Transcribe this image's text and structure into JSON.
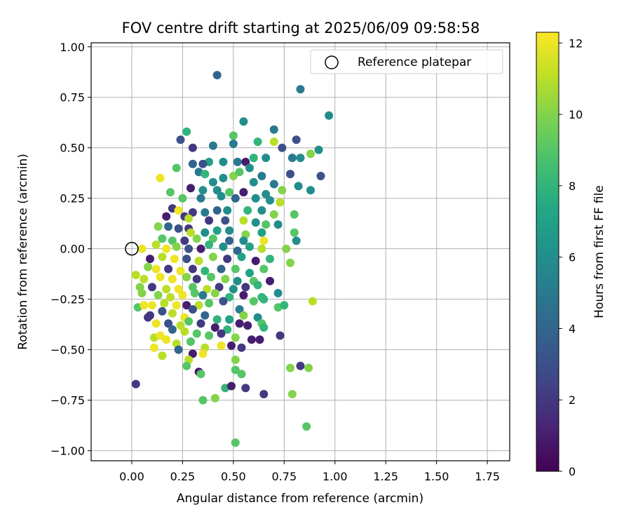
{
  "chart_data": {
    "type": "scatter",
    "title": "FOV centre drift starting at 2025/06/09 09:58:58",
    "xlabel": "Angular distance from reference (arcmin)",
    "ylabel": "Rotation from reference (arcmin)",
    "xlim": [
      -0.2,
      1.86
    ],
    "ylim": [
      -1.05,
      1.02
    ],
    "xticks": [
      "0.00",
      "0.25",
      "0.50",
      "0.75",
      "1.00",
      "1.25",
      "1.50",
      "1.75"
    ],
    "xtick_values": [
      0,
      0.25,
      0.5,
      0.75,
      1.0,
      1.25,
      1.5,
      1.75
    ],
    "yticks": [
      "1.00",
      "0.75",
      "0.50",
      "0.25",
      "0.00",
      "−0.25",
      "−0.50",
      "−0.75",
      "−1.00"
    ],
    "ytick_values": [
      1.0,
      0.75,
      0.5,
      0.25,
      0,
      -0.25,
      -0.5,
      -0.75,
      -1.0
    ],
    "grid": true,
    "legend": {
      "label": "Reference platepar",
      "position": "top-right"
    },
    "reference_point": {
      "x": 0.0,
      "y": 0.0
    },
    "colorbar": {
      "label": "Hours from first FF file",
      "colormap": "viridis",
      "range": [
        0,
        12.3
      ],
      "ticks": [
        "0",
        "2",
        "4",
        "6",
        "8",
        "10",
        "12"
      ],
      "tick_values": [
        0,
        2,
        4,
        6,
        8,
        10,
        12
      ]
    },
    "points": [
      [
        0.42,
        0.86,
        4
      ],
      [
        0.83,
        0.79,
        5
      ],
      [
        0.97,
        0.66,
        6
      ],
      [
        0.55,
        0.63,
        6
      ],
      [
        0.27,
        0.58,
        8
      ],
      [
        0.7,
        0.59,
        5
      ],
      [
        0.81,
        0.54,
        3
      ],
      [
        0.5,
        0.56,
        9
      ],
      [
        0.24,
        0.54,
        3
      ],
      [
        0.3,
        0.5,
        2
      ],
      [
        0.4,
        0.51,
        5
      ],
      [
        0.62,
        0.53,
        8
      ],
      [
        0.5,
        0.52,
        5
      ],
      [
        0.74,
        0.5,
        3
      ],
      [
        0.7,
        0.53,
        11
      ],
      [
        0.92,
        0.49,
        6
      ],
      [
        0.88,
        0.47,
        10
      ],
      [
        0.79,
        0.45,
        5
      ],
      [
        0.83,
        0.45,
        6
      ],
      [
        0.66,
        0.45,
        6
      ],
      [
        0.6,
        0.45,
        8
      ],
      [
        0.52,
        0.43,
        5
      ],
      [
        0.45,
        0.43,
        6
      ],
      [
        0.38,
        0.43,
        7
      ],
      [
        0.35,
        0.42,
        3
      ],
      [
        0.3,
        0.42,
        4
      ],
      [
        0.56,
        0.43,
        1
      ],
      [
        0.58,
        0.4,
        6
      ],
      [
        0.22,
        0.4,
        9
      ],
      [
        0.14,
        0.35,
        12
      ],
      [
        0.33,
        0.38,
        5
      ],
      [
        0.36,
        0.37,
        8
      ],
      [
        0.5,
        0.36,
        10
      ],
      [
        0.53,
        0.38,
        9
      ],
      [
        0.64,
        0.36,
        5
      ],
      [
        0.78,
        0.37,
        3
      ],
      [
        0.93,
        0.36,
        3
      ],
      [
        0.4,
        0.33,
        6
      ],
      [
        0.45,
        0.35,
        6
      ],
      [
        0.6,
        0.33,
        6
      ],
      [
        0.7,
        0.32,
        5
      ],
      [
        0.82,
        0.31,
        6
      ],
      [
        0.88,
        0.29,
        6
      ],
      [
        0.29,
        0.3,
        1
      ],
      [
        0.35,
        0.29,
        6
      ],
      [
        0.42,
        0.29,
        6
      ],
      [
        0.48,
        0.28,
        9
      ],
      [
        0.55,
        0.28,
        1
      ],
      [
        0.66,
        0.27,
        6
      ],
      [
        0.74,
        0.29,
        10
      ],
      [
        0.19,
        0.28,
        9
      ],
      [
        0.25,
        0.25,
        9
      ],
      [
        0.34,
        0.25,
        5
      ],
      [
        0.44,
        0.26,
        6
      ],
      [
        0.51,
        0.25,
        4
      ],
      [
        0.61,
        0.25,
        6
      ],
      [
        0.68,
        0.24,
        6
      ],
      [
        0.73,
        0.23,
        11
      ],
      [
        0.2,
        0.2,
        2
      ],
      [
        0.23,
        0.19,
        12
      ],
      [
        0.3,
        0.18,
        2
      ],
      [
        0.36,
        0.18,
        5
      ],
      [
        0.42,
        0.19,
        4
      ],
      [
        0.47,
        0.19,
        6
      ],
      [
        0.57,
        0.19,
        8
      ],
      [
        0.64,
        0.19,
        6
      ],
      [
        0.7,
        0.17,
        10
      ],
      [
        0.8,
        0.17,
        9
      ],
      [
        0.17,
        0.16,
        1
      ],
      [
        0.26,
        0.16,
        2
      ],
      [
        0.28,
        0.15,
        11
      ],
      [
        0.38,
        0.14,
        2
      ],
      [
        0.46,
        0.14,
        3
      ],
      [
        0.55,
        0.14,
        11
      ],
      [
        0.61,
        0.13,
        6
      ],
      [
        0.66,
        0.12,
        9
      ],
      [
        0.72,
        0.12,
        6
      ],
      [
        0.13,
        0.11,
        10
      ],
      [
        0.18,
        0.11,
        4
      ],
      [
        0.23,
        0.1,
        3
      ],
      [
        0.28,
        0.1,
        2
      ],
      [
        0.29,
        0.08,
        11
      ],
      [
        0.36,
        0.08,
        6
      ],
      [
        0.42,
        0.09,
        7
      ],
      [
        0.48,
        0.09,
        6
      ],
      [
        0.56,
        0.07,
        10
      ],
      [
        0.64,
        0.08,
        7
      ],
      [
        0.8,
        0.08,
        9
      ],
      [
        0.15,
        0.05,
        9
      ],
      [
        0.2,
        0.04,
        9
      ],
      [
        0.26,
        0.04,
        2
      ],
      [
        0.32,
        0.05,
        10
      ],
      [
        0.4,
        0.05,
        9
      ],
      [
        0.48,
        0.04,
        4
      ],
      [
        0.55,
        0.04,
        6
      ],
      [
        0.65,
        0.04,
        12
      ],
      [
        0.81,
        0.04,
        6
      ],
      [
        0.05,
        0.0,
        12
      ],
      [
        0.12,
        0.02,
        11
      ],
      [
        0.17,
        0.0,
        12
      ],
      [
        0.22,
        0.01,
        10
      ],
      [
        0.28,
        0.0,
        3
      ],
      [
        0.34,
        0.0,
        1
      ],
      [
        0.38,
        0.02,
        8
      ],
      [
        0.45,
        0.01,
        6
      ],
      [
        0.52,
        -0.01,
        4
      ],
      [
        0.58,
        0.01,
        7
      ],
      [
        0.64,
        0.0,
        11
      ],
      [
        0.76,
        0.0,
        10
      ],
      [
        0.09,
        -0.05,
        1
      ],
      [
        0.15,
        -0.04,
        11
      ],
      [
        0.21,
        -0.05,
        12
      ],
      [
        0.27,
        -0.05,
        3
      ],
      [
        0.33,
        -0.06,
        11
      ],
      [
        0.4,
        -0.04,
        10
      ],
      [
        0.47,
        -0.05,
        2
      ],
      [
        0.54,
        -0.04,
        7
      ],
      [
        0.61,
        -0.06,
        1
      ],
      [
        0.68,
        -0.05,
        8
      ],
      [
        0.78,
        -0.07,
        10
      ],
      [
        0.08,
        -0.09,
        10
      ],
      [
        0.12,
        -0.1,
        12
      ],
      [
        0.18,
        -0.1,
        2
      ],
      [
        0.24,
        -0.11,
        12
      ],
      [
        0.3,
        -0.1,
        2
      ],
      [
        0.36,
        -0.11,
        8
      ],
      [
        0.44,
        -0.1,
        4
      ],
      [
        0.51,
        -0.1,
        9
      ],
      [
        0.58,
        -0.12,
        7
      ],
      [
        0.65,
        -0.1,
        9
      ],
      [
        0.02,
        -0.13,
        11
      ],
      [
        0.06,
        -0.15,
        11
      ],
      [
        0.14,
        -0.14,
        12
      ],
      [
        0.2,
        -0.15,
        12
      ],
      [
        0.27,
        -0.14,
        10
      ],
      [
        0.32,
        -0.15,
        2
      ],
      [
        0.39,
        -0.14,
        9
      ],
      [
        0.46,
        -0.15,
        10
      ],
      [
        0.52,
        -0.16,
        6
      ],
      [
        0.6,
        -0.16,
        9
      ],
      [
        0.68,
        -0.16,
        1
      ],
      [
        0.04,
        -0.19,
        10
      ],
      [
        0.1,
        -0.19,
        2
      ],
      [
        0.17,
        -0.2,
        11
      ],
      [
        0.23,
        -0.2,
        12
      ],
      [
        0.3,
        -0.19,
        9
      ],
      [
        0.37,
        -0.2,
        11
      ],
      [
        0.43,
        -0.19,
        2
      ],
      [
        0.5,
        -0.2,
        6
      ],
      [
        0.56,
        -0.19,
        2
      ],
      [
        0.62,
        -0.18,
        8
      ],
      [
        0.05,
        -0.22,
        10
      ],
      [
        0.13,
        -0.23,
        10
      ],
      [
        0.19,
        -0.24,
        11
      ],
      [
        0.25,
        -0.23,
        12
      ],
      [
        0.31,
        -0.22,
        9
      ],
      [
        0.35,
        -0.23,
        5
      ],
      [
        0.41,
        -0.22,
        10
      ],
      [
        0.48,
        -0.24,
        8
      ],
      [
        0.55,
        -0.23,
        1
      ],
      [
        0.64,
        -0.24,
        8
      ],
      [
        0.72,
        -0.22,
        6
      ],
      [
        0.03,
        -0.29,
        9
      ],
      [
        0.1,
        -0.28,
        12
      ],
      [
        0.16,
        -0.27,
        11
      ],
      [
        0.22,
        -0.28,
        12
      ],
      [
        0.27,
        -0.28,
        1
      ],
      [
        0.33,
        -0.28,
        11
      ],
      [
        0.38,
        -0.27,
        9
      ],
      [
        0.45,
        -0.26,
        3
      ],
      [
        0.53,
        -0.3,
        5
      ],
      [
        0.6,
        -0.26,
        9
      ],
      [
        0.65,
        -0.25,
        8
      ],
      [
        0.72,
        -0.29,
        9
      ],
      [
        0.75,
        -0.28,
        8
      ],
      [
        0.89,
        -0.26,
        11
      ],
      [
        0.06,
        -0.28,
        12
      ],
      [
        0.09,
        -0.33,
        2
      ],
      [
        0.15,
        -0.31,
        3
      ],
      [
        0.2,
        -0.32,
        11
      ],
      [
        0.26,
        -0.34,
        12
      ],
      [
        0.3,
        -0.3,
        3
      ],
      [
        0.36,
        -0.33,
        4
      ],
      [
        0.42,
        -0.35,
        8
      ],
      [
        0.48,
        -0.35,
        7
      ],
      [
        0.55,
        -0.33,
        10
      ],
      [
        0.62,
        -0.34,
        6
      ],
      [
        0.08,
        -0.34,
        2
      ],
      [
        0.12,
        -0.37,
        12
      ],
      [
        0.18,
        -0.37,
        3
      ],
      [
        0.24,
        -0.38,
        11
      ],
      [
        0.28,
        -0.36,
        9
      ],
      [
        0.34,
        -0.37,
        2
      ],
      [
        0.41,
        -0.39,
        1
      ],
      [
        0.47,
        -0.4,
        8
      ],
      [
        0.53,
        -0.37,
        1
      ],
      [
        0.57,
        -0.38,
        1
      ],
      [
        0.64,
        -0.37,
        9
      ],
      [
        0.11,
        -0.44,
        11
      ],
      [
        0.14,
        -0.43,
        12
      ],
      [
        0.2,
        -0.4,
        4
      ],
      [
        0.26,
        -0.41,
        11
      ],
      [
        0.32,
        -0.42,
        9
      ],
      [
        0.38,
        -0.43,
        9
      ],
      [
        0.44,
        -0.42,
        2
      ],
      [
        0.51,
        -0.44,
        10
      ],
      [
        0.59,
        -0.45,
        1
      ],
      [
        0.63,
        -0.45,
        1
      ],
      [
        0.65,
        -0.39,
        8
      ],
      [
        0.73,
        -0.43,
        2
      ],
      [
        0.11,
        -0.49,
        12
      ],
      [
        0.17,
        -0.45,
        12
      ],
      [
        0.22,
        -0.47,
        11
      ],
      [
        0.29,
        -0.46,
        9
      ],
      [
        0.36,
        -0.49,
        11
      ],
      [
        0.44,
        -0.48,
        12
      ],
      [
        0.49,
        -0.48,
        1
      ],
      [
        0.54,
        -0.49,
        2
      ],
      [
        0.23,
        -0.5,
        4
      ],
      [
        0.3,
        -0.52,
        1
      ],
      [
        0.35,
        -0.52,
        12
      ],
      [
        0.15,
        -0.53,
        11
      ],
      [
        0.28,
        -0.55,
        11
      ],
      [
        0.51,
        -0.55,
        10
      ],
      [
        0.27,
        -0.58,
        9
      ],
      [
        0.33,
        -0.61,
        1
      ],
      [
        0.51,
        -0.6,
        9
      ],
      [
        0.54,
        -0.62,
        9
      ],
      [
        0.34,
        -0.62,
        9
      ],
      [
        0.78,
        -0.59,
        10
      ],
      [
        0.83,
        -0.58,
        2
      ],
      [
        0.87,
        -0.59,
        10
      ],
      [
        0.02,
        -0.67,
        2
      ],
      [
        0.46,
        -0.69,
        8
      ],
      [
        0.49,
        -0.68,
        1
      ],
      [
        0.56,
        -0.69,
        2
      ],
      [
        0.65,
        -0.72,
        2
      ],
      [
        0.35,
        -0.75,
        9
      ],
      [
        0.41,
        -0.74,
        10
      ],
      [
        0.79,
        -0.72,
        10
      ],
      [
        0.86,
        -0.88,
        9
      ],
      [
        0.51,
        -0.96,
        9
      ]
    ]
  }
}
